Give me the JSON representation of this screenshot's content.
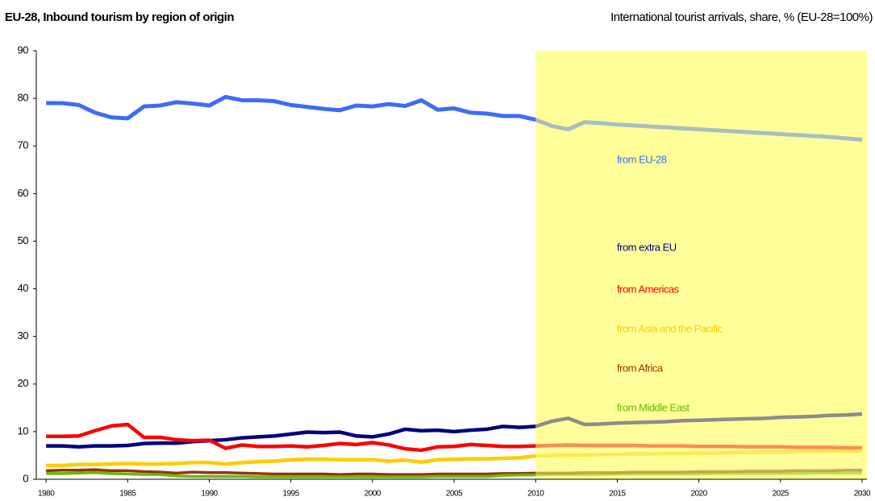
{
  "chart_data": {
    "type": "line",
    "title": "EU-28, Inbound tourism by region of origin",
    "subtitle": "International tourist arrivals, share, % (EU-28=100%)",
    "x": [
      1980,
      1981,
      1982,
      1983,
      1984,
      1985,
      1986,
      1987,
      1988,
      1989,
      1990,
      1991,
      1992,
      1993,
      1994,
      1995,
      1996,
      1997,
      1998,
      1999,
      2000,
      2001,
      2002,
      2003,
      2004,
      2005,
      2006,
      2007,
      2008,
      2009,
      2010,
      2011,
      2012,
      2013,
      2014,
      2015,
      2016,
      2017,
      2018,
      2019,
      2020,
      2021,
      2022,
      2023,
      2024,
      2025,
      2026,
      2027,
      2028,
      2029,
      2030
    ],
    "xlim": [
      1979.4,
      2030.3
    ],
    "xticks": [
      1980,
      1985,
      1990,
      1995,
      2000,
      2005,
      2010,
      2015,
      2020,
      2025,
      2030
    ],
    "ylim": [
      0,
      90
    ],
    "yticks": [
      0,
      10,
      20,
      30,
      40,
      50,
      60,
      70,
      80,
      90
    ],
    "shade_from": 2010,
    "shade_color": "#ffff99",
    "legend": "inside-right",
    "series": [
      {
        "name": "from EU-28",
        "color": "#3d6cf5",
        "values": [
          79,
          79,
          78.6,
          77,
          76,
          75.8,
          78.3,
          78.5,
          79.2,
          78.9,
          78.5,
          80.3,
          79.6,
          79.6,
          79.4,
          78.6,
          78.2,
          77.8,
          77.5,
          78.5,
          78.3,
          78.8,
          78.4,
          79.6,
          77.6,
          77.9,
          77,
          76.8,
          76.3,
          76.3,
          75.5,
          74.2,
          73.5,
          75,
          74.8,
          74.5,
          74.3,
          74.1,
          73.9,
          73.7,
          73.5,
          73.3,
          73.1,
          72.9,
          72.7,
          72.5,
          72.3,
          72.1,
          71.9,
          71.6,
          71.3
        ]
      },
      {
        "name": "from extra EU",
        "color": "#000080",
        "values": [
          7,
          7,
          6.8,
          7,
          7,
          7.1,
          7.5,
          7.6,
          7.6,
          7.9,
          8.1,
          8.3,
          8.7,
          8.9,
          9.1,
          9.5,
          9.9,
          9.8,
          9.9,
          9.1,
          8.9,
          9.5,
          10.5,
          10.2,
          10.3,
          10,
          10.3,
          10.5,
          11.1,
          10.9,
          11.1,
          12.2,
          12.8,
          11.5,
          11.6,
          11.8,
          11.9,
          12,
          12.1,
          12.3,
          12.4,
          12.5,
          12.6,
          12.7,
          12.8,
          13,
          13.1,
          13.2,
          13.4,
          13.5,
          13.7
        ]
      },
      {
        "name": "from Americas",
        "color": "#ff0000",
        "values": [
          9,
          9,
          9.1,
          10.2,
          11.2,
          11.5,
          8.8,
          8.8,
          8.3,
          8.1,
          8.2,
          6.5,
          7.2,
          6.9,
          6.9,
          7,
          6.8,
          7.1,
          7.5,
          7.3,
          7.7,
          7.2,
          6.4,
          6.1,
          6.8,
          6.9,
          7.3,
          7.1,
          6.9,
          6.9,
          7,
          7.1,
          7.2,
          7.1,
          7.1,
          7.1,
          7.1,
          7,
          7,
          7,
          6.9,
          6.9,
          6.9,
          6.8,
          6.8,
          6.8,
          6.7,
          6.7,
          6.7,
          6.6,
          6.6
        ]
      },
      {
        "name": "from Asia and the Pacific",
        "color": "#ffcc00",
        "values": [
          2.9,
          2.9,
          3.1,
          3.1,
          3.2,
          3.3,
          3.2,
          3.2,
          3.3,
          3.5,
          3.5,
          3.2,
          3.5,
          3.7,
          3.8,
          4.1,
          4.2,
          4.2,
          4.1,
          4.1,
          4.1,
          3.8,
          4,
          3.6,
          4.1,
          4.2,
          4.3,
          4.3,
          4.4,
          4.5,
          4.9,
          5,
          5.1,
          5.1,
          5.2,
          5.2,
          5.3,
          5.3,
          5.4,
          5.4,
          5.5,
          5.5,
          5.6,
          5.6,
          5.7,
          5.7,
          5.8,
          5.8,
          5.9,
          5.9,
          6
        ]
      },
      {
        "name": "from Africa",
        "color": "#993300",
        "values": [
          1.8,
          1.9,
          1.9,
          2,
          1.8,
          1.8,
          1.6,
          1.5,
          1.3,
          1.5,
          1.4,
          1.4,
          1.3,
          1.2,
          1.1,
          1.1,
          1.1,
          1.1,
          1,
          1.1,
          1.1,
          1,
          1,
          1,
          1.1,
          1.1,
          1.1,
          1.1,
          1.2,
          1.2,
          1.3,
          1.3,
          1.3,
          1.4,
          1.4,
          1.4,
          1.5,
          1.5,
          1.5,
          1.5,
          1.6,
          1.6,
          1.6,
          1.7,
          1.7,
          1.7,
          1.8,
          1.8,
          1.8,
          1.9,
          1.9
        ]
      },
      {
        "name": "from Middle East",
        "color": "#66bb00",
        "values": [
          1.2,
          1.2,
          1.3,
          1.4,
          1.2,
          1.1,
          1,
          1,
          0.7,
          0.6,
          0.6,
          0.6,
          0.6,
          0.5,
          0.5,
          0.5,
          0.5,
          0.5,
          0.5,
          0.5,
          0.5,
          0.5,
          0.5,
          0.5,
          0.6,
          0.6,
          0.6,
          0.6,
          0.8,
          0.9,
          0.9,
          1,
          1,
          1,
          1,
          1.1,
          1.1,
          1.1,
          1.1,
          1.1,
          1.1,
          1.2,
          1.2,
          1.2,
          1.2,
          1.2,
          1.2,
          1.3,
          1.3,
          1.3,
          1.3
        ]
      }
    ]
  }
}
